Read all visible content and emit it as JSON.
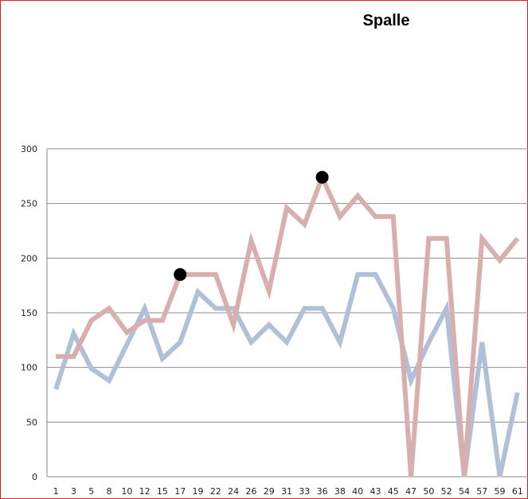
{
  "chart_data": {
    "type": "line",
    "title": "Spalle",
    "xlabel": "",
    "ylabel": "",
    "ylim": [
      0,
      300
    ],
    "yticks": [
      0,
      50,
      100,
      150,
      200,
      250,
      300
    ],
    "grid": true,
    "legend": "none",
    "categories": [
      "1",
      "3",
      "5",
      "8",
      "10",
      "12",
      "15",
      "17",
      "19",
      "22",
      "24",
      "26",
      "29",
      "31",
      "33",
      "36",
      "38",
      "40",
      "43",
      "45",
      "47",
      "50",
      "52",
      "54",
      "57",
      "59",
      "61"
    ],
    "series": [
      {
        "color": "#d8aeae",
        "values": [
          110,
          110,
          143,
          154,
          132,
          143,
          143,
          185,
          185,
          185,
          139,
          216,
          170,
          246,
          231,
          274,
          238,
          257,
          238,
          238,
          0,
          218,
          218,
          0,
          218,
          198,
          218
        ]
      },
      {
        "color": "#afc0d8",
        "values": [
          80,
          131,
          99,
          88,
          121,
          154,
          108,
          123,
          169,
          154,
          154,
          123,
          139,
          123,
          154,
          154,
          123,
          185,
          185,
          154,
          88,
          123,
          154,
          0,
          123,
          0,
          77
        ]
      }
    ],
    "highlight_points": [
      {
        "x": "17",
        "y": 185
      },
      {
        "x": "36",
        "y": 274
      }
    ]
  }
}
